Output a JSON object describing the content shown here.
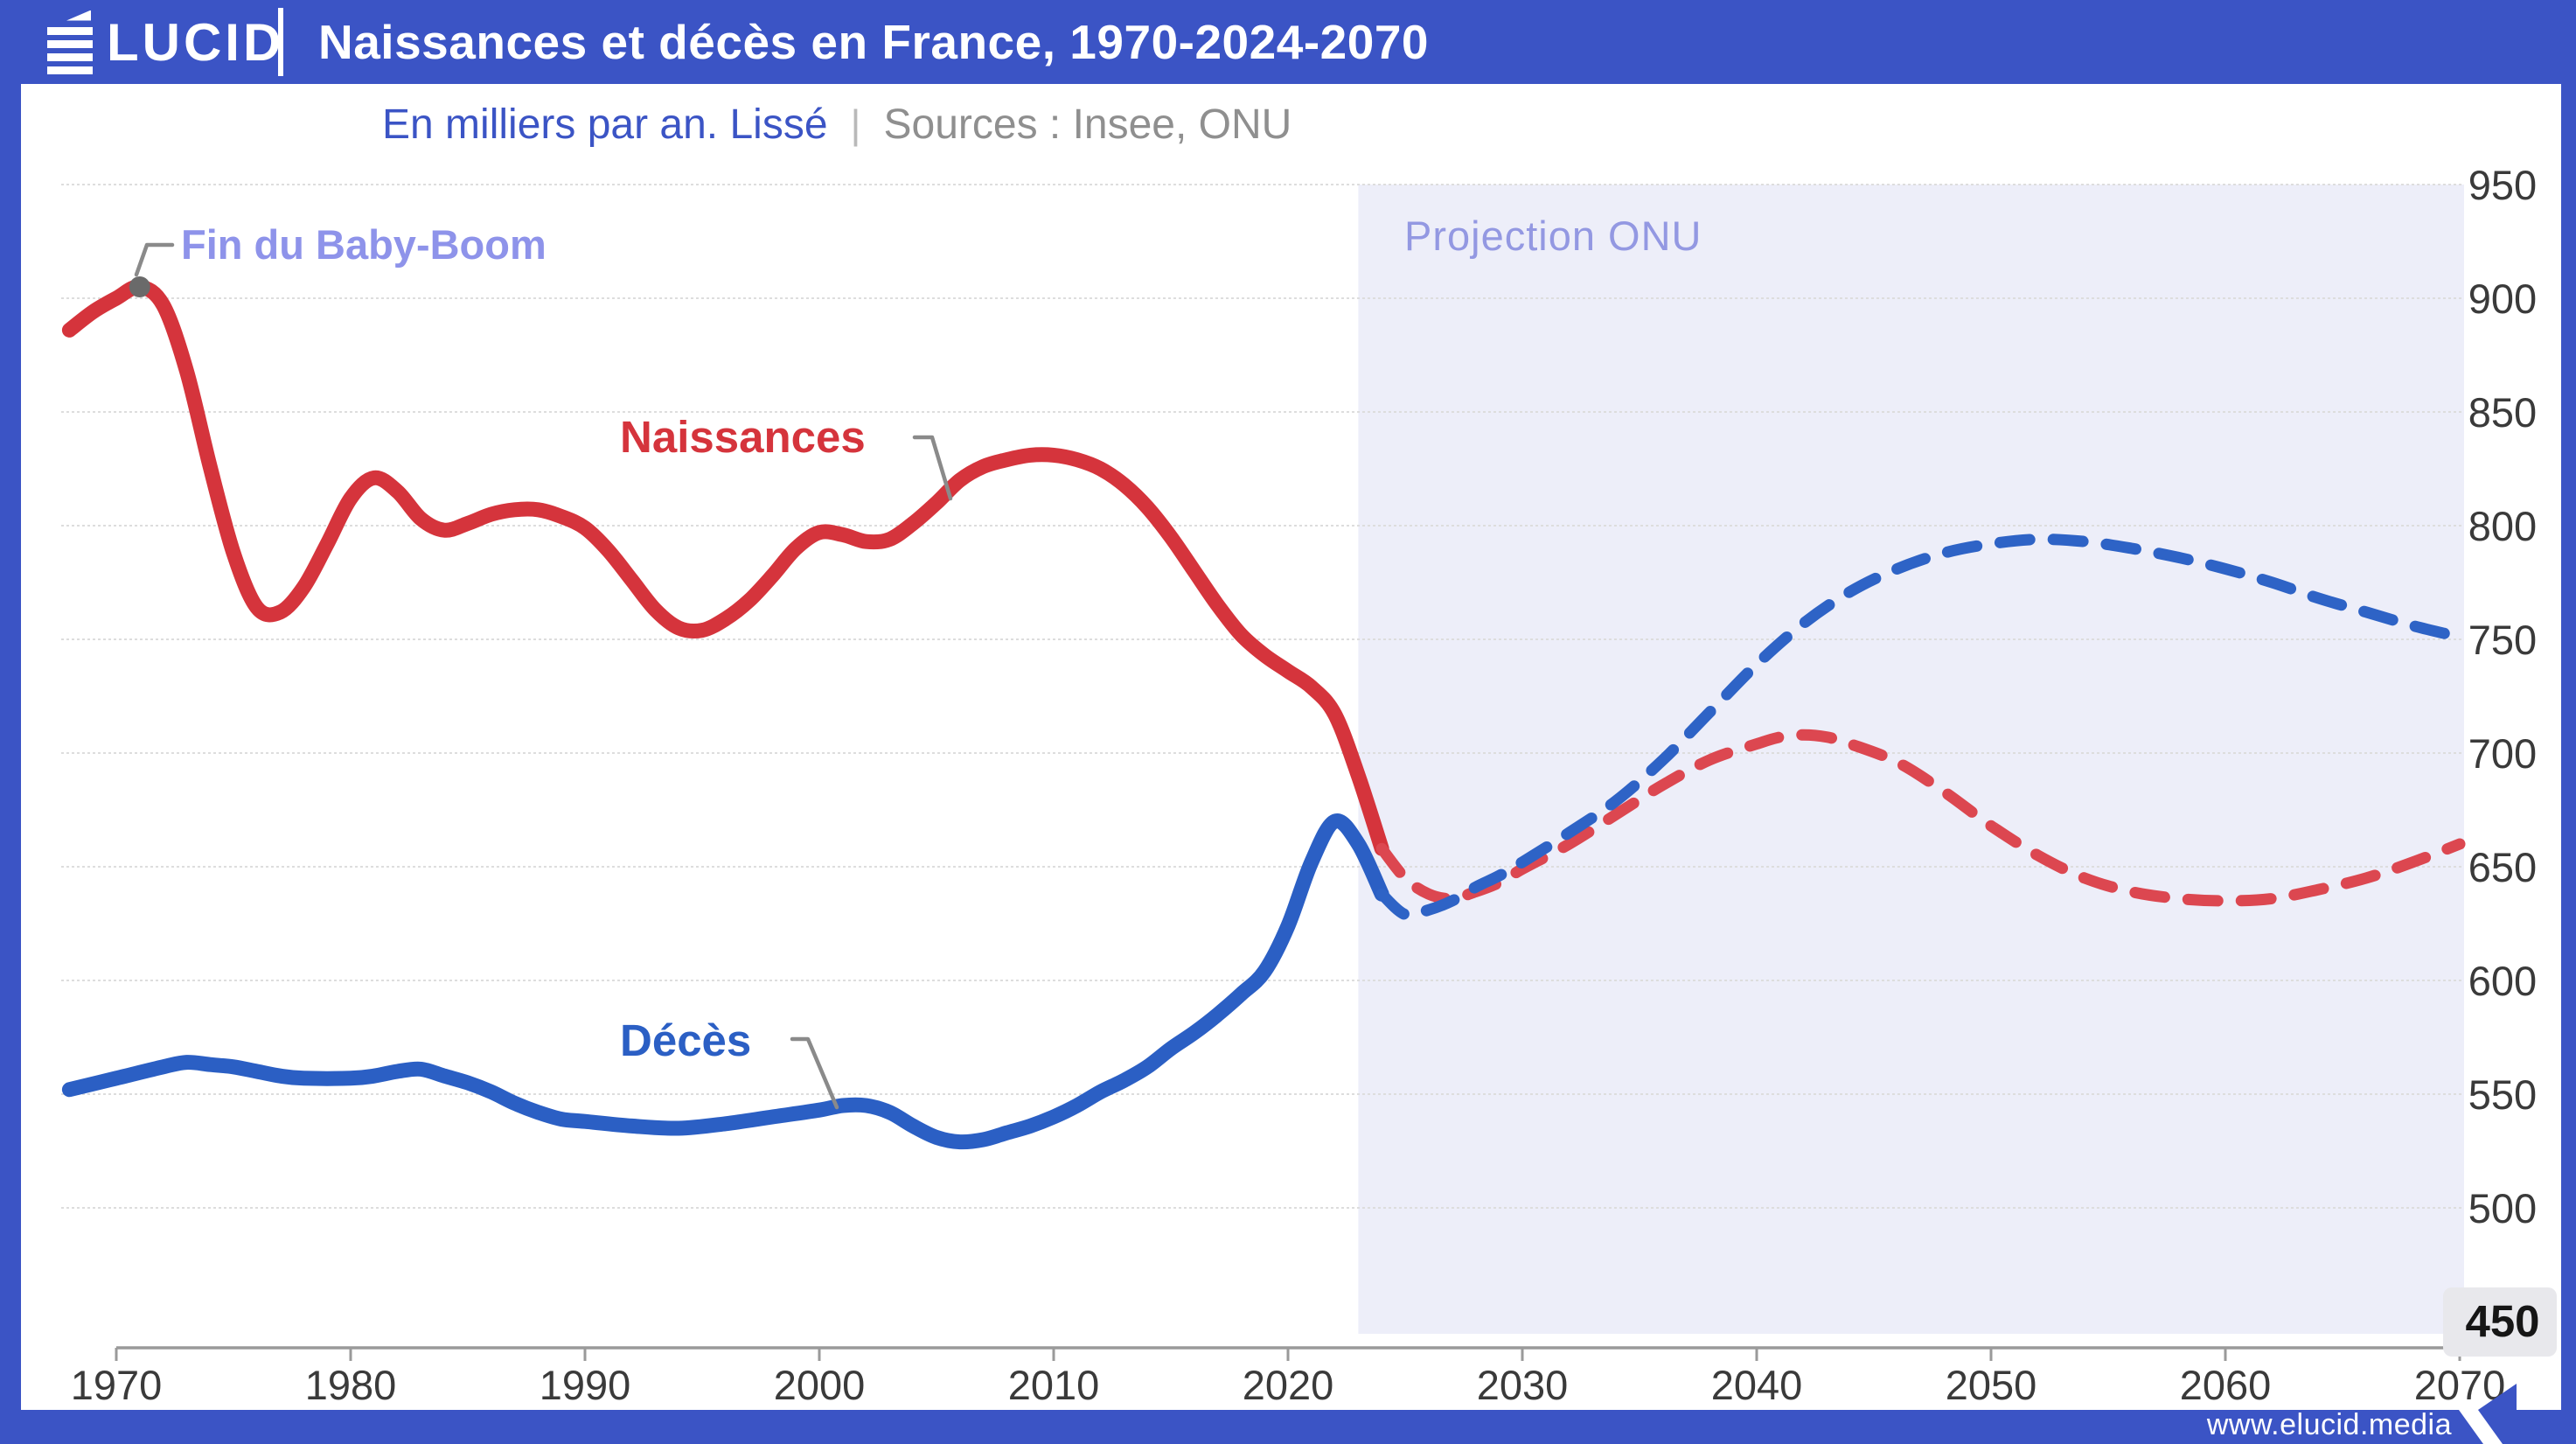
{
  "header": {
    "logo_full": "ÉLUCID",
    "logo_wordmark": "LUCID",
    "title": "Naissances et décès en France, 1970-2024-2070"
  },
  "subtitle": {
    "unit_label": "En milliers par an. Lissé",
    "separator": "|",
    "sources_label": "Sources : Insee, ONU"
  },
  "footer": {
    "url": "www.elucid.media"
  },
  "colors": {
    "brand_blue": "#3b54c5",
    "births_red": "#d5343c",
    "births_red_dashed": "#dc4750",
    "deaths_blue": "#2b5fc4",
    "deaths_blue_dashed": "#2e63c6",
    "projection_band": "#edeef9",
    "annotation_lavender": "#8e93ea",
    "grid": "#dddddd",
    "axis": "#9a9a9a",
    "tick_text": "#3a3a3a",
    "callout_gray": "#8a8a8a"
  },
  "chart_data": {
    "type": "line",
    "title": "Naissances et décès en France, 1970-2024-2070",
    "unit": "milliers par an (lissé)",
    "xlabel": "",
    "ylabel": "",
    "ylim": [
      450,
      950
    ],
    "x_ticks": [
      1970,
      1980,
      1990,
      2000,
      2010,
      2020,
      2030,
      2040,
      2050,
      2060,
      2070
    ],
    "y_ticks": [
      950,
      900,
      850,
      800,
      750,
      700,
      650,
      600,
      550,
      500,
      450
    ],
    "baseline_tick": "450",
    "grid": "horizontal",
    "legend_position": "inline-labels",
    "projection": {
      "label": "Projection ONU",
      "start_year": 2023,
      "band_color": "#edeef9"
    },
    "annotations": [
      {
        "id": "baby-boom",
        "label": "Fin du Baby-Boom",
        "year": 1971,
        "value": 905
      }
    ],
    "series": [
      {
        "id": "births",
        "name": "Naissances",
        "color": "#d5343c",
        "style": "solid",
        "points": [
          [
            1968,
            886
          ],
          [
            1969,
            894
          ],
          [
            1970,
            900
          ],
          [
            1971,
            905
          ],
          [
            1972,
            897
          ],
          [
            1973,
            868
          ],
          [
            1974,
            826
          ],
          [
            1975,
            788
          ],
          [
            1976,
            764
          ],
          [
            1977,
            762
          ],
          [
            1978,
            773
          ],
          [
            1979,
            792
          ],
          [
            1980,
            812
          ],
          [
            1981,
            821
          ],
          [
            1982,
            815
          ],
          [
            1983,
            803
          ],
          [
            1984,
            798
          ],
          [
            1985,
            801
          ],
          [
            1986,
            805
          ],
          [
            1987,
            807
          ],
          [
            1988,
            807
          ],
          [
            1989,
            804
          ],
          [
            1990,
            799
          ],
          [
            1991,
            789
          ],
          [
            1992,
            776
          ],
          [
            1993,
            763
          ],
          [
            1994,
            755
          ],
          [
            1995,
            754
          ],
          [
            1996,
            759
          ],
          [
            1997,
            767
          ],
          [
            1998,
            778
          ],
          [
            1999,
            790
          ],
          [
            2000,
            797
          ],
          [
            2001,
            796
          ],
          [
            2002,
            793
          ],
          [
            2003,
            794
          ],
          [
            2004,
            801
          ],
          [
            2005,
            810
          ],
          [
            2006,
            820
          ],
          [
            2007,
            826
          ],
          [
            2008,
            829
          ],
          [
            2009,
            831
          ],
          [
            2010,
            831
          ],
          [
            2011,
            829
          ],
          [
            2012,
            825
          ],
          [
            2013,
            818
          ],
          [
            2014,
            808
          ],
          [
            2015,
            795
          ],
          [
            2016,
            780
          ],
          [
            2017,
            765
          ],
          [
            2018,
            752
          ],
          [
            2019,
            743
          ],
          [
            2020,
            736
          ],
          [
            2021,
            729
          ],
          [
            2022,
            717
          ],
          [
            2023,
            690
          ],
          [
            2024,
            658
          ]
        ]
      },
      {
        "id": "births-projection",
        "name": "Naissances (projection ONU)",
        "color": "#dc4750",
        "style": "dashed",
        "points": [
          [
            2024,
            658
          ],
          [
            2025,
            645
          ],
          [
            2026,
            638
          ],
          [
            2027,
            636
          ],
          [
            2028,
            639
          ],
          [
            2029,
            643
          ],
          [
            2030,
            649
          ],
          [
            2032,
            660
          ],
          [
            2034,
            673
          ],
          [
            2036,
            686
          ],
          [
            2038,
            697
          ],
          [
            2040,
            704
          ],
          [
            2041,
            707
          ],
          [
            2042,
            708
          ],
          [
            2043,
            707
          ],
          [
            2044,
            704
          ],
          [
            2046,
            696
          ],
          [
            2048,
            683
          ],
          [
            2050,
            668
          ],
          [
            2052,
            655
          ],
          [
            2054,
            645
          ],
          [
            2056,
            639
          ],
          [
            2058,
            636
          ],
          [
            2060,
            635
          ],
          [
            2062,
            636
          ],
          [
            2064,
            640
          ],
          [
            2066,
            645
          ],
          [
            2068,
            652
          ],
          [
            2070,
            660
          ]
        ]
      },
      {
        "id": "deaths",
        "name": "Décès",
        "color": "#2b5fc4",
        "style": "solid",
        "points": [
          [
            1968,
            552
          ],
          [
            1970,
            557
          ],
          [
            1972,
            562
          ],
          [
            1973,
            564
          ],
          [
            1974,
            563
          ],
          [
            1975,
            562
          ],
          [
            1976,
            560
          ],
          [
            1977,
            558
          ],
          [
            1978,
            557
          ],
          [
            1980,
            557
          ],
          [
            1981,
            558
          ],
          [
            1982,
            560
          ],
          [
            1983,
            561
          ],
          [
            1984,
            558
          ],
          [
            1985,
            555
          ],
          [
            1986,
            551
          ],
          [
            1987,
            546
          ],
          [
            1988,
            542
          ],
          [
            1989,
            539
          ],
          [
            1990,
            538
          ],
          [
            1992,
            536
          ],
          [
            1994,
            535
          ],
          [
            1996,
            537
          ],
          [
            1998,
            540
          ],
          [
            2000,
            543
          ],
          [
            2001,
            545
          ],
          [
            2002,
            545
          ],
          [
            2003,
            542
          ],
          [
            2004,
            536
          ],
          [
            2005,
            531
          ],
          [
            2006,
            529
          ],
          [
            2007,
            530
          ],
          [
            2008,
            533
          ],
          [
            2009,
            536
          ],
          [
            2010,
            540
          ],
          [
            2011,
            545
          ],
          [
            2012,
            551
          ],
          [
            2013,
            556
          ],
          [
            2014,
            562
          ],
          [
            2015,
            570
          ],
          [
            2016,
            577
          ],
          [
            2017,
            585
          ],
          [
            2018,
            594
          ],
          [
            2019,
            604
          ],
          [
            2020,
            624
          ],
          [
            2021,
            652
          ],
          [
            2022,
            670
          ],
          [
            2023,
            660
          ],
          [
            2024,
            638
          ]
        ]
      },
      {
        "id": "deaths-projection",
        "name": "Décès (projection ONU)",
        "color": "#2e63c6",
        "style": "dashed",
        "points": [
          [
            2024,
            638
          ],
          [
            2025,
            629
          ],
          [
            2026,
            631
          ],
          [
            2027,
            635
          ],
          [
            2028,
            641
          ],
          [
            2029,
            646
          ],
          [
            2030,
            652
          ],
          [
            2032,
            665
          ],
          [
            2034,
            679
          ],
          [
            2036,
            697
          ],
          [
            2038,
            718
          ],
          [
            2040,
            739
          ],
          [
            2042,
            757
          ],
          [
            2044,
            771
          ],
          [
            2046,
            781
          ],
          [
            2048,
            788
          ],
          [
            2050,
            792
          ],
          [
            2052,
            794
          ],
          [
            2054,
            793
          ],
          [
            2056,
            790
          ],
          [
            2058,
            786
          ],
          [
            2060,
            781
          ],
          [
            2062,
            775
          ],
          [
            2064,
            768
          ],
          [
            2066,
            762
          ],
          [
            2068,
            756
          ],
          [
            2070,
            751
          ]
        ]
      }
    ]
  }
}
